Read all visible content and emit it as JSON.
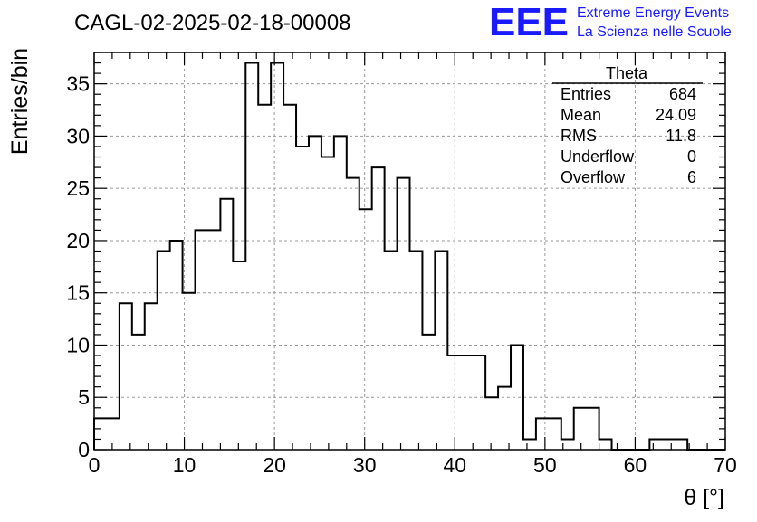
{
  "chart_data": {
    "type": "bar",
    "title": "CAGL-02-2025-02-18-00008",
    "xlabel": "θ [°]",
    "ylabel": "Entries/bin",
    "xlim": [
      0,
      70
    ],
    "ylim": [
      0,
      38
    ],
    "x_ticks": [
      0,
      10,
      20,
      30,
      40,
      50,
      60,
      70
    ],
    "y_ticks": [
      0,
      5,
      10,
      15,
      20,
      25,
      30,
      35
    ],
    "grid": true,
    "bin_width": 1.4,
    "bin_edges_start": 0,
    "values": [
      3,
      3,
      14,
      11,
      14,
      19,
      20,
      15,
      21,
      21,
      24,
      18,
      37,
      33,
      37,
      33,
      29,
      30,
      28,
      30,
      26,
      23,
      27,
      19,
      26,
      19,
      11,
      19,
      9,
      9,
      9,
      5,
      6,
      10,
      1,
      3,
      3,
      1,
      4,
      4,
      1,
      0,
      0,
      0,
      1,
      1,
      1,
      0,
      0,
      0
    ],
    "stats_box": {
      "title": "Theta",
      "rows": [
        {
          "label": "Entries",
          "value": "684"
        },
        {
          "label": "Mean",
          "value": "24.09"
        },
        {
          "label": "RMS",
          "value": "11.8"
        },
        {
          "label": "Underflow",
          "value": "0"
        },
        {
          "label": "Overflow",
          "value": "6"
        }
      ]
    }
  },
  "logo": {
    "text": "EEE",
    "line1": "Extreme Energy Events",
    "line2": "La Scienza nelle Scuole",
    "color": "#1a1aff"
  }
}
